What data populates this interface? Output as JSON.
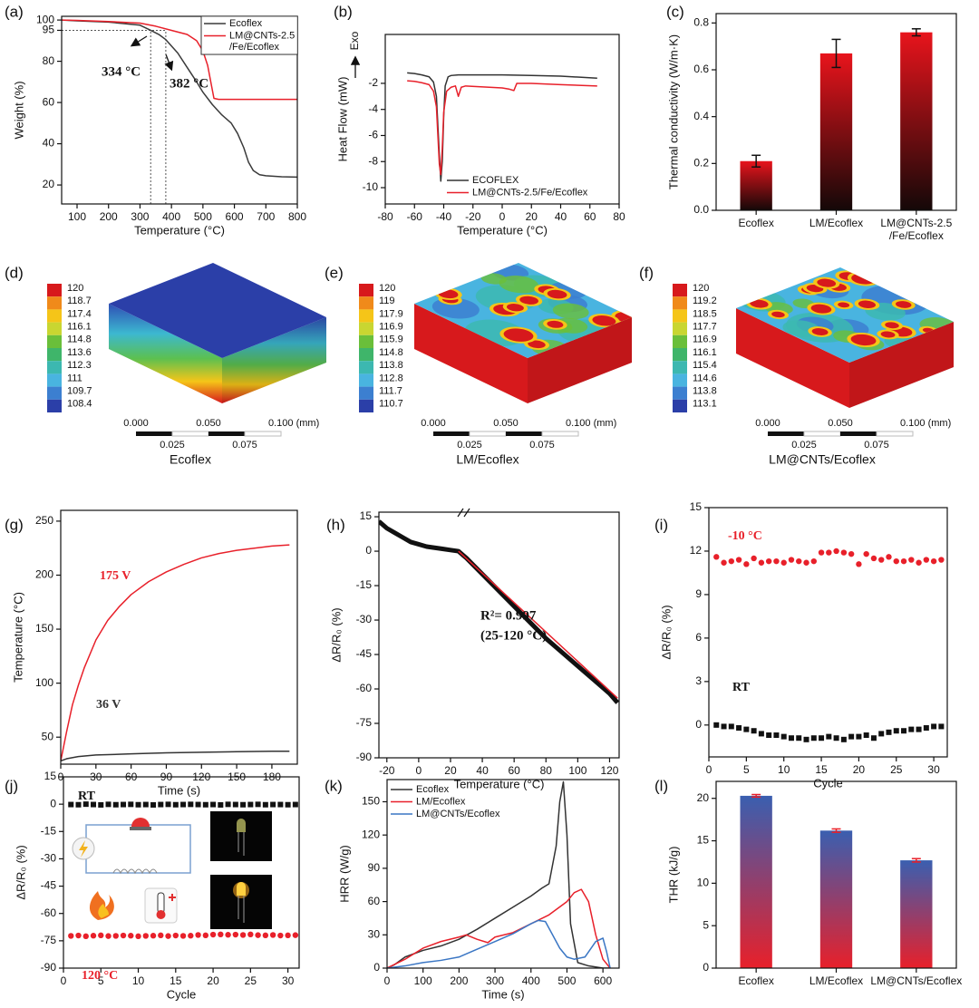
{
  "chart_data": [
    {
      "type": "line",
      "panel": "(a)",
      "xlabel": "Temperature (°C)",
      "ylabel": "Weight (%)",
      "xlim": [
        51,
        800
      ],
      "xticks": [
        100,
        200,
        300,
        400,
        500,
        600,
        700,
        800
      ],
      "ylim": [
        10.8,
        101.8
      ],
      "yticks": [
        20,
        40,
        60,
        80,
        95,
        100
      ],
      "legend": "upper right",
      "legend_frame": true,
      "series": [
        {
          "name": "Ecoflex",
          "color": "#3a3a3a",
          "x": [
            51,
            100,
            200,
            300,
            334,
            360,
            382,
            420,
            450,
            480,
            500,
            530,
            560,
            590,
            610,
            630,
            645,
            660,
            680,
            700,
            750,
            800
          ],
          "values": [
            100,
            99.6,
            99,
            97.5,
            95,
            93,
            90.5,
            84,
            77,
            70,
            65,
            59,
            54,
            50,
            45,
            38,
            31,
            27,
            25,
            24.5,
            24,
            23.8
          ]
        },
        {
          "name": "LM@CNTs-2.5 /Fe/Ecoflex",
          "color": "#e8202a",
          "x": [
            51,
            100,
            200,
            300,
            350,
            400,
            450,
            480,
            500,
            515,
            525,
            535,
            550,
            600,
            700,
            800
          ],
          "values": [
            100,
            99.8,
            99.3,
            98.5,
            97,
            95,
            93,
            90,
            85,
            78,
            70,
            62,
            61.5,
            61.5,
            61.5,
            61.5
          ]
        }
      ],
      "annotations": [
        "334 °C",
        "382 °C"
      ],
      "guides_x": [
        334,
        382
      ]
    },
    {
      "type": "line",
      "panel": "(b)",
      "xlabel": "Temperature (°C)",
      "ylabel": "Heat Flow (mW)",
      "xlim": [
        -80,
        80
      ],
      "xticks": [
        -80,
        -60,
        -40,
        -20,
        0,
        20,
        40,
        60,
        80
      ],
      "ylim": [
        -11.25,
        1.75
      ],
      "yticks": [
        -10,
        -8,
        -6,
        -4,
        -2
      ],
      "legend": "lower right",
      "legend_frame": false,
      "series": [
        {
          "name": "ECOFLEX",
          "color": "#333333",
          "x": [
            -65,
            -60,
            -55,
            -50,
            -47,
            -45,
            -43,
            -42,
            -41,
            -40,
            -39,
            -37,
            -35,
            -30,
            -20,
            0,
            20,
            40,
            65
          ],
          "values": [
            -1.2,
            -1.25,
            -1.35,
            -1.5,
            -1.9,
            -3.0,
            -7.5,
            -9.5,
            -8.0,
            -4.5,
            -2.2,
            -1.5,
            -1.4,
            -1.35,
            -1.35,
            -1.35,
            -1.4,
            -1.45,
            -1.6
          ]
        },
        {
          "name": "LM@CNTs-2.5/Fe/Ecoflex",
          "color": "#e8202a",
          "x": [
            -65,
            -60,
            -55,
            -50,
            -47,
            -45,
            -44,
            -43,
            -42,
            -41,
            -40,
            -38,
            -35,
            -32,
            -30,
            -28,
            -25,
            0,
            5,
            8,
            10,
            20,
            40,
            65
          ],
          "values": [
            -1.8,
            -1.85,
            -1.95,
            -2.1,
            -2.6,
            -3.8,
            -6,
            -8.2,
            -9.0,
            -7,
            -4.2,
            -2.6,
            -2.3,
            -2.2,
            -3.0,
            -2.3,
            -2.2,
            -2.35,
            -2.45,
            -2.55,
            -2.0,
            -2.0,
            -2.1,
            -2.2
          ]
        }
      ],
      "annotations": [
        "Exo"
      ]
    },
    {
      "type": "bar",
      "panel": "(c)",
      "ylabel": "Thermal conductivity (W/m·K)",
      "categories": [
        "Ecoflex",
        "LM/Ecoflex",
        "LM@CNTs-2.5 /Fe/Ecoflex"
      ],
      "values": [
        0.21,
        0.67,
        0.76
      ],
      "errors": [
        0.025,
        0.06,
        0.015
      ],
      "ylim": [
        0,
        0.84
      ],
      "yticks": [
        {
          "value": 0,
          "label": "0.0"
        },
        0.2,
        0.4,
        0.6,
        0.8
      ],
      "gradient": [
        "#e8141c",
        "#140808"
      ],
      "error_color": "#111111"
    },
    {
      "type": "contour3d",
      "panel": "(d)",
      "colorbar_ticks": [
        120,
        118.7,
        117.4,
        116.1,
        114.8,
        113.6,
        112.3,
        111,
        109.7,
        108.4
      ],
      "colormap": [
        "#d7191c",
        "#f08a1a",
        "#f5c518",
        "#c9d631",
        "#6abf3a",
        "#3fb56a",
        "#3cb8b0",
        "#49b4e0",
        "#3c7fd0",
        "#2b3fa8"
      ],
      "scale_labels": [
        "0.000",
        "0.025",
        "0.050",
        "0.075",
        "0.100 (mm)"
      ],
      "caption": "Ecoflex"
    },
    {
      "type": "contour3d",
      "panel": "(e)",
      "colorbar_ticks": [
        120,
        119,
        117.9,
        116.9,
        115.9,
        114.8,
        113.8,
        112.8,
        111.7,
        110.7
      ],
      "colormap": [
        "#d7191c",
        "#f08a1a",
        "#f5c518",
        "#c9d631",
        "#6abf3a",
        "#3fb56a",
        "#3cb8b0",
        "#49b4e0",
        "#3c7fd0",
        "#2b3fa8"
      ],
      "scale_labels": [
        "0.000",
        "0.025",
        "0.050",
        "0.075",
        "0.100 (mm)"
      ],
      "caption": "LM/Ecoflex"
    },
    {
      "type": "contour3d",
      "panel": "(f)",
      "colorbar_ticks": [
        120,
        119.2,
        118.5,
        117.7,
        116.9,
        116.1,
        115.4,
        114.6,
        113.8,
        113.1
      ],
      "colormap": [
        "#d7191c",
        "#f08a1a",
        "#f5c518",
        "#c9d631",
        "#6abf3a",
        "#3fb56a",
        "#3cb8b0",
        "#49b4e0",
        "#3c7fd0",
        "#2b3fa8"
      ],
      "scale_labels": [
        "0.000",
        "0.025",
        "0.050",
        "0.075",
        "0.100 (mm)"
      ],
      "caption": "LM@CNTs/Ecoflex"
    },
    {
      "type": "line",
      "panel": "(g)",
      "xlabel": "Time (s)",
      "ylabel": "Temperature (°C)",
      "xlim": [
        0,
        201.7
      ],
      "xticks": [
        0,
        30,
        60,
        90,
        120,
        150,
        180
      ],
      "ylim": [
        25,
        260
      ],
      "yticks": [
        50,
        100,
        150,
        200,
        250
      ],
      "legend": "inline",
      "series": [
        {
          "name": "175 V",
          "color": "#e8202a",
          "x": [
            0,
            5,
            10,
            15,
            20,
            30,
            40,
            50,
            60,
            75,
            90,
            105,
            120,
            135,
            150,
            165,
            180,
            195
          ],
          "values": [
            28,
            55,
            80,
            98,
            114,
            140,
            158,
            171,
            182,
            194,
            203,
            210,
            216,
            220,
            223,
            225,
            227,
            228
          ]
        },
        {
          "name": "36 V",
          "color": "#333333",
          "x": [
            0,
            5,
            15,
            30,
            60,
            90,
            120,
            150,
            180,
            195
          ],
          "values": [
            28,
            30,
            32,
            33.5,
            34.5,
            35.5,
            36,
            36.5,
            37,
            37
          ]
        }
      ]
    },
    {
      "type": "line",
      "panel": "(h)",
      "xlabel": "Temperature (°C)",
      "ylabel": "ΔR/R₀ (%)",
      "xlim": [
        -25,
        126
      ],
      "xticks": [
        -20,
        0,
        20,
        40,
        60,
        80,
        100,
        120
      ],
      "ylim": [
        -90,
        17
      ],
      "yticks": [
        15,
        0,
        -15,
        -30,
        -45,
        -60,
        -75,
        -90
      ],
      "series": [
        {
          "color": "#111111",
          "width": 5,
          "x": [
            -25,
            -20,
            -15,
            -10,
            -5,
            0,
            5,
            10,
            15,
            20,
            25,
            30,
            40,
            50,
            60,
            70,
            80,
            90,
            100,
            110,
            120,
            125
          ],
          "values": [
            13,
            10,
            8,
            6,
            4,
            3,
            2,
            1.5,
            1,
            0.5,
            0,
            -3,
            -10,
            -17,
            -24,
            -31,
            -38,
            -44,
            -50,
            -56,
            -62,
            -66
          ]
        },
        {
          "color": "#e8202a",
          "width": 1.5,
          "x": [
            25,
            125
          ],
          "values": [
            0,
            -64
          ]
        }
      ],
      "annotations": [
        "R²= 0.997",
        "(25-120 °C)"
      ]
    },
    {
      "type": "scatter",
      "panel": "(i)",
      "xlabel": "Cycle",
      "ylabel": "ΔR/R₀ (%)",
      "xlim": [
        0,
        31.8
      ],
      "xticks": [
        0,
        5,
        10,
        15,
        20,
        25,
        30
      ],
      "ylim": [
        -2.2,
        15
      ],
      "yticks": [
        0,
        3,
        6,
        9,
        12,
        15
      ],
      "legend": "inline",
      "series": [
        {
          "name": "-10 °C",
          "color": "#e8202a",
          "marker": "circle",
          "x": [
            1,
            2,
            3,
            4,
            5,
            6,
            7,
            8,
            9,
            10,
            11,
            12,
            13,
            14,
            15,
            16,
            17,
            18,
            19,
            20,
            21,
            22,
            23,
            24,
            25,
            26,
            27,
            28,
            29,
            30,
            31
          ],
          "values": [
            11.6,
            11.2,
            11.3,
            11.4,
            11.1,
            11.5,
            11.2,
            11.3,
            11.3,
            11.2,
            11.4,
            11.3,
            11.2,
            11.3,
            11.9,
            11.9,
            12.0,
            11.9,
            11.8,
            11.1,
            11.8,
            11.5,
            11.4,
            11.6,
            11.3,
            11.3,
            11.4,
            11.2,
            11.4,
            11.3,
            11.4
          ]
        },
        {
          "name": "RT",
          "color": "#111111",
          "marker": "square",
          "x": [
            1,
            2,
            3,
            4,
            5,
            6,
            7,
            8,
            9,
            10,
            11,
            12,
            13,
            14,
            15,
            16,
            17,
            18,
            19,
            20,
            21,
            22,
            23,
            24,
            25,
            26,
            27,
            28,
            29,
            30,
            31
          ],
          "values": [
            0,
            -0.1,
            -0.1,
            -0.2,
            -0.3,
            -0.4,
            -0.6,
            -0.7,
            -0.7,
            -0.8,
            -0.9,
            -0.9,
            -1.0,
            -0.9,
            -0.9,
            -0.8,
            -0.9,
            -1.0,
            -0.8,
            -0.8,
            -0.7,
            -0.9,
            -0.6,
            -0.5,
            -0.4,
            -0.4,
            -0.3,
            -0.3,
            -0.2,
            -0.1,
            -0.1
          ]
        }
      ]
    },
    {
      "type": "scatter",
      "panel": "(j)",
      "xlabel": "Cycle",
      "ylabel": "ΔR/R₀ (%)",
      "xlim": [
        0,
        31.5
      ],
      "xticks": [
        0,
        5,
        10,
        15,
        20,
        25,
        30
      ],
      "ylim": [
        -90,
        15
      ],
      "yticks": [
        15,
        0,
        -15,
        -30,
        -45,
        -60,
        -75,
        -90
      ],
      "legend": "inline",
      "series": [
        {
          "name": "RT",
          "color": "#111111",
          "marker": "square",
          "x": [
            1,
            2,
            3,
            4,
            5,
            6,
            7,
            8,
            9,
            10,
            11,
            12,
            13,
            14,
            15,
            16,
            17,
            18,
            19,
            20,
            21,
            22,
            23,
            24,
            25,
            26,
            27,
            28,
            29,
            30,
            31
          ],
          "values": [
            -0.2,
            -0.3,
            0,
            -0.2,
            -0.4,
            -0.1,
            -0.3,
            -0.2,
            -0.1,
            -0.3,
            -0.2,
            -0.4,
            -0.2,
            -0.1,
            -0.3,
            -0.2,
            -0.1,
            -0.2,
            -0.3,
            -0.2,
            -0.4,
            -0.1,
            -0.2,
            -0.3,
            -0.2,
            -0.1,
            -0.3,
            -0.2,
            -0.2,
            -0.3,
            -0.2
          ]
        },
        {
          "name": "120 °C",
          "color": "#e8202a",
          "marker": "circle",
          "x": [
            1,
            2,
            3,
            4,
            5,
            6,
            7,
            8,
            9,
            10,
            11,
            12,
            13,
            14,
            15,
            16,
            17,
            18,
            19,
            20,
            21,
            22,
            23,
            24,
            25,
            26,
            27,
            28,
            29,
            30,
            31
          ],
          "values": [
            -72.3,
            -72.1,
            -72.5,
            -72.2,
            -72.0,
            -72.4,
            -72.3,
            -72.1,
            -72.2,
            -72.5,
            -72.3,
            -72.2,
            -72.0,
            -72.4,
            -72.1,
            -72.3,
            -72.2,
            -71.8,
            -72.0,
            -71.6,
            -71.5,
            -71.7,
            -71.6,
            -71.8,
            -71.5,
            -71.9,
            -72.0,
            -71.8,
            -72.1,
            -72.0,
            -71.9
          ]
        }
      ]
    },
    {
      "type": "line",
      "panel": "(k)",
      "xlabel": "Time (s)",
      "ylabel": "HRR (W/g)",
      "xlim": [
        0,
        645
      ],
      "xticks": [
        0,
        100,
        200,
        300,
        400,
        500,
        600
      ],
      "ylim": [
        0,
        170
      ],
      "yticks": [
        0,
        30,
        60,
        90,
        120,
        150
      ],
      "legend": "upper left",
      "legend_frame": false,
      "series": [
        {
          "name": "Ecoflex",
          "color": "#333333",
          "x": [
            0,
            20,
            50,
            100,
            150,
            200,
            250,
            300,
            350,
            400,
            430,
            450,
            470,
            480,
            490,
            500,
            510,
            530,
            560,
            600,
            620
          ],
          "values": [
            0,
            3,
            10,
            16,
            20,
            26,
            35,
            45,
            55,
            65,
            72,
            76,
            110,
            150,
            168,
            120,
            40,
            5,
            2,
            0,
            0
          ]
        },
        {
          "name": "LM/Ecoflex",
          "color": "#e8202a",
          "x": [
            0,
            50,
            100,
            150,
            200,
            220,
            250,
            280,
            300,
            350,
            400,
            450,
            500,
            520,
            540,
            560,
            580,
            600,
            620
          ],
          "values": [
            0,
            8,
            18,
            24,
            28,
            30,
            26,
            23,
            28,
            32,
            40,
            48,
            60,
            68,
            71,
            60,
            30,
            8,
            0
          ]
        },
        {
          "name": "LM@CNTs/Ecoflex",
          "color": "#3a76c4",
          "x": [
            0,
            50,
            100,
            150,
            200,
            250,
            300,
            350,
            400,
            420,
            440,
            460,
            480,
            500,
            520,
            550,
            580,
            600,
            610,
            620
          ],
          "values": [
            0,
            2,
            5,
            7,
            10,
            17,
            24,
            31,
            40,
            43,
            42,
            30,
            18,
            10,
            8,
            10,
            24,
            27,
            15,
            0
          ]
        }
      ]
    },
    {
      "type": "bar",
      "panel": "(l)",
      "ylabel": "THR (kJ/g)",
      "categories": [
        "Ecoflex",
        "LM/Ecoflex",
        "LM@CNTs/Ecoflex"
      ],
      "values": [
        20.3,
        16.2,
        12.7
      ],
      "errors": [
        0.15,
        0.2,
        0.2
      ],
      "ylim": [
        0,
        22
      ],
      "yticks": [
        0,
        5,
        10,
        15,
        20
      ],
      "gradient": [
        "#3a5fb0",
        "#e8202a"
      ],
      "error_color": "#e8202a"
    }
  ]
}
